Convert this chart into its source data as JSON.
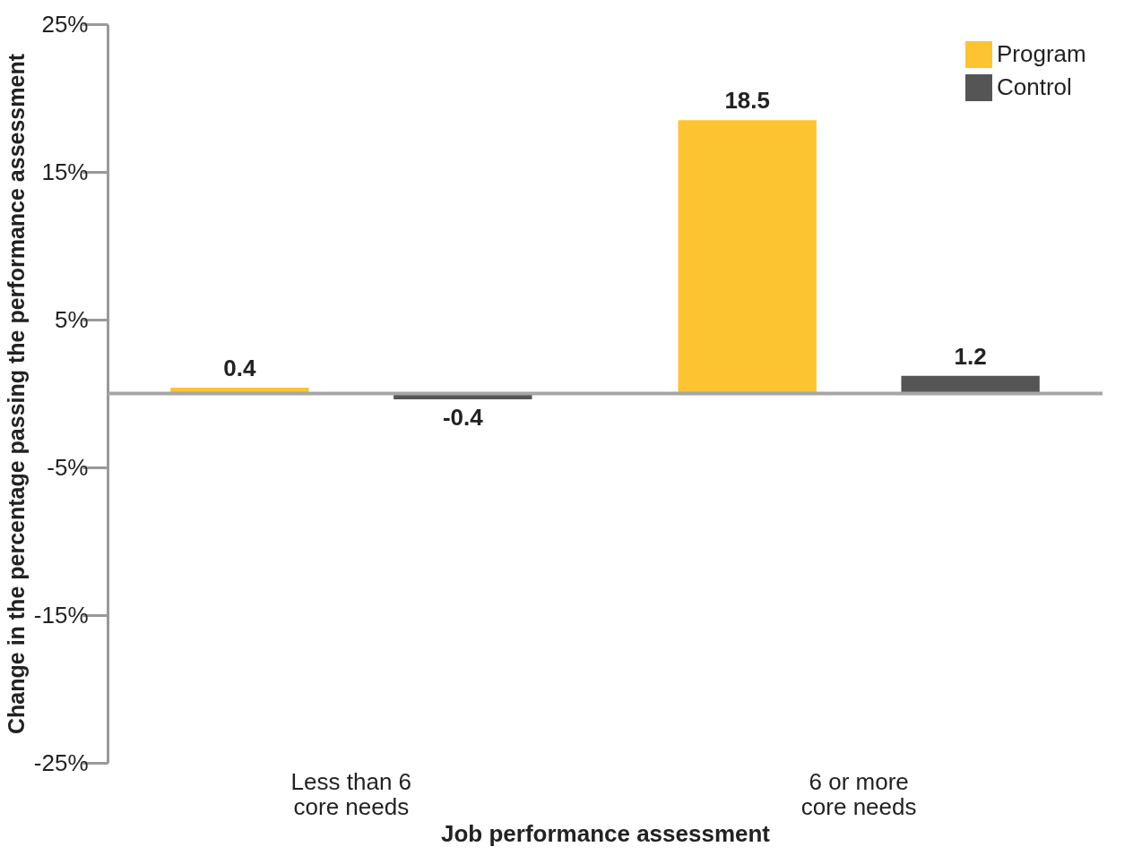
{
  "chart_data": {
    "type": "bar",
    "xlabel": "Job performance assessment",
    "ylabel": "Change in the percentage passing the performance assessment",
    "categories": [
      "Less than 6\ncore needs",
      "6 or more\ncore needs"
    ],
    "series": [
      {
        "name": "Program",
        "color": "#fdc431",
        "values": [
          0.4,
          18.5
        ]
      },
      {
        "name": "Control",
        "color": "#555555",
        "values": [
          -0.4,
          1.2
        ]
      }
    ],
    "ylim": [
      -25,
      25
    ],
    "yticks": [
      {
        "value": -25,
        "label": "-25%"
      },
      {
        "value": -15,
        "label": "-15%"
      },
      {
        "value": -5,
        "label": "-5%"
      },
      {
        "value": 5,
        "label": "5%"
      },
      {
        "value": 15,
        "label": "15%"
      },
      {
        "value": 25,
        "label": "25%"
      }
    ],
    "ref_lines": [
      {
        "axis": "y",
        "value": 0,
        "color": "#a6a6a6"
      }
    ],
    "data_labels": true,
    "grid": false,
    "legend": "top right"
  }
}
